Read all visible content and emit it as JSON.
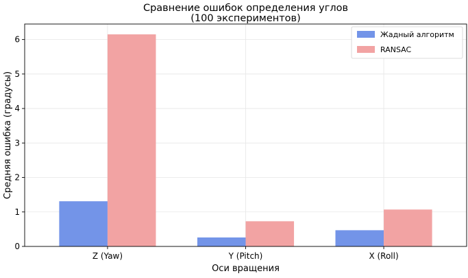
{
  "chart_data": {
    "type": "bar",
    "title": "Сравнение ошибок определения углов",
    "subtitle": "(100 экспериментов)",
    "xlabel": "Оси вращения",
    "ylabel": "Средняя ошибка (градусы)",
    "categories": [
      "Z (Yaw)",
      "Y (Pitch)",
      "X (Roll)"
    ],
    "series": [
      {
        "name": "Жадный алгоритм",
        "values": [
          1.31,
          0.26,
          0.47
        ],
        "color": "#7394e8"
      },
      {
        "name": "RANSAC",
        "values": [
          6.15,
          0.73,
          1.07
        ],
        "color": "#f2a3a3"
      }
    ],
    "ylim": [
      0,
      6.45
    ],
    "yticks": [
      0,
      1,
      2,
      3,
      4,
      5,
      6
    ],
    "grid": true,
    "legend_position": "top-right"
  }
}
